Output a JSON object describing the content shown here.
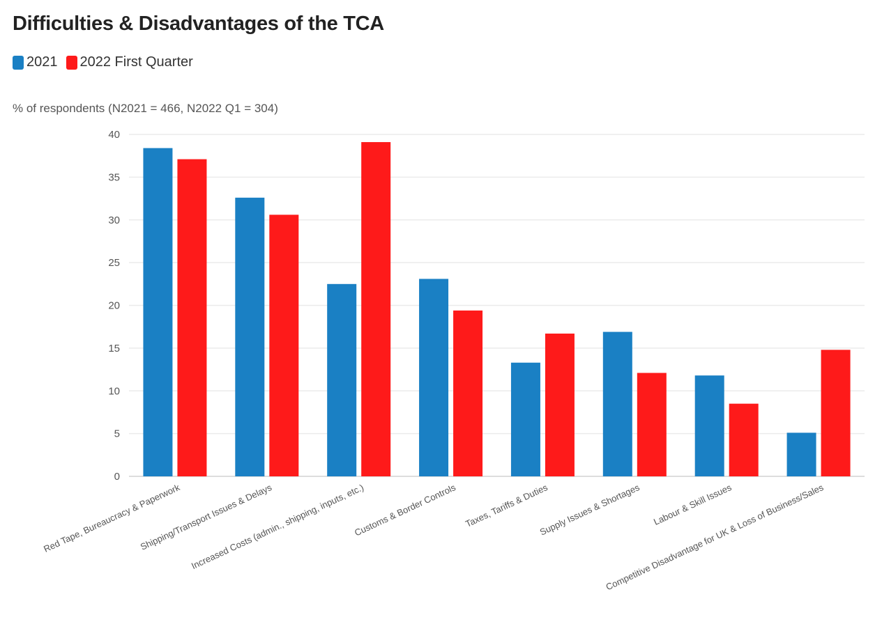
{
  "header": {
    "title": "Difficulties & Disadvantages of the TCA",
    "subtitle": "% of respondents (N2021 = 466, N2022 Q1 = 304)"
  },
  "legend": [
    {
      "name": "2021",
      "color": "#1a80c4"
    },
    {
      "name": "2022 First Quarter",
      "color": "#fe1a1a"
    }
  ],
  "chart_data": {
    "type": "bar",
    "title": "Difficulties & Disadvantages of the TCA",
    "ylabel": "% of respondents (N2021 = 466, N2022 Q1 = 304)",
    "ylim": [
      0,
      40
    ],
    "yticks": [
      0,
      5,
      10,
      15,
      20,
      25,
      30,
      35,
      40
    ],
    "grid": true,
    "legend_position": "top-left",
    "categories": [
      "Red Tape, Bureaucracy & Paperwork",
      "Shipping/Transport Issues & Delays",
      "Increased Costs (admin., shipping, inputs, etc.)",
      "Customs & Border Controls",
      "Taxes, Tariffs & Duties",
      "Supply Issues & Shortages",
      "Labour & Skill Issues",
      "Competitive Disadvantage for UK & Loss of Business/Sales"
    ],
    "series": [
      {
        "name": "2021",
        "color": "#1a80c4",
        "values": [
          38.4,
          32.6,
          22.5,
          23.1,
          13.3,
          16.9,
          11.8,
          5.1
        ]
      },
      {
        "name": "2022 First Quarter",
        "color": "#fe1a1a",
        "values": [
          37.1,
          30.6,
          39.1,
          19.4,
          16.7,
          12.1,
          8.5,
          14.8
        ]
      }
    ]
  }
}
